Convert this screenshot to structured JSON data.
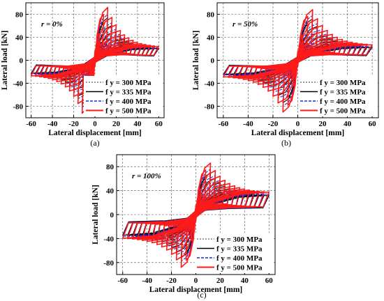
{
  "chart_data": [
    {
      "type": "line",
      "panel_caption": "(a)",
      "annotation": "r = 0%",
      "xlabel": "Lateral displacement [mm]",
      "ylabel": "Lateral load [kN]",
      "xlim": [
        -65,
        65
      ],
      "ylim": [
        -100,
        100
      ],
      "xticks": [
        -60,
        -40,
        -20,
        0,
        20,
        40,
        60
      ],
      "yticks": [
        -80,
        -40,
        0,
        40,
        80
      ],
      "grid": true,
      "legend_position": "bottom-right",
      "series": [
        {
          "name": "f y = 300 MPa",
          "peak_pos": 70,
          "peak_neg": -72,
          "end_pos": 18,
          "end_neg": -20
        },
        {
          "name": "f y = 335 MPa",
          "peak_pos": 74,
          "peak_neg": -76,
          "end_pos": 19,
          "end_neg": -21
        },
        {
          "name": "f y = 400 MPa",
          "peak_pos": 80,
          "peak_neg": -82,
          "end_pos": 20,
          "end_neg": -22
        },
        {
          "name": "f y = 500 MPa",
          "peak_pos": 92,
          "peak_neg": -92,
          "end_pos": 22,
          "end_neg": -25
        }
      ]
    },
    {
      "type": "line",
      "panel_caption": "(b)",
      "annotation": "r = 50%",
      "xlabel": "Lateral displacement [mm]",
      "ylabel": "Lateral load [kN]",
      "xlim": [
        -65,
        65
      ],
      "ylim": [
        -100,
        100
      ],
      "xticks": [
        -60,
        -40,
        -20,
        0,
        20,
        40,
        60
      ],
      "yticks": [
        -80,
        -40,
        0,
        40,
        80
      ],
      "grid": true,
      "legend_position": "bottom-right",
      "series": [
        {
          "name": "f y = 300 MPa",
          "peak_pos": 68,
          "peak_neg": -70,
          "end_pos": 20,
          "end_neg": -22
        },
        {
          "name": "f y = 335 MPa",
          "peak_pos": 72,
          "peak_neg": -74,
          "end_pos": 21,
          "end_neg": -23
        },
        {
          "name": "f y = 400 MPa",
          "peak_pos": 78,
          "peak_neg": -80,
          "end_pos": 22,
          "end_neg": -24
        },
        {
          "name": "f y = 500 MPa",
          "peak_pos": 88,
          "peak_neg": -90,
          "end_pos": 25,
          "end_neg": -27
        }
      ]
    },
    {
      "type": "line",
      "panel_caption": "(c)",
      "annotation": "r = 100%",
      "xlabel": "Lateral displacement [mm]",
      "ylabel": "Lateral load [kN]",
      "xlim": [
        -65,
        65
      ],
      "ylim": [
        -100,
        100
      ],
      "xticks": [
        -60,
        -40,
        -20,
        0,
        20,
        40,
        60
      ],
      "yticks": [
        -80,
        -40,
        0,
        40,
        80
      ],
      "grid": true,
      "legend_position": "bottom-right",
      "series": [
        {
          "name": "f y = 300 MPa",
          "peak_pos": 66,
          "peak_neg": -68,
          "end_pos": 30,
          "end_neg": -32
        },
        {
          "name": "f y = 335 MPa",
          "peak_pos": 70,
          "peak_neg": -72,
          "end_pos": 31,
          "end_neg": -33
        },
        {
          "name": "f y = 400 MPa",
          "peak_pos": 76,
          "peak_neg": -78,
          "end_pos": 33,
          "end_neg": -35
        },
        {
          "name": "f y = 500 MPa",
          "peak_pos": 86,
          "peak_neg": -88,
          "end_pos": 36,
          "end_neg": -38
        }
      ]
    }
  ],
  "series_styles": [
    {
      "color": "#7a7a7a",
      "dash": "2,2",
      "width": 1.0
    },
    {
      "color": "#000000",
      "dash": "",
      "width": 1.1
    },
    {
      "color": "#1a2bd6",
      "dash": "4,2",
      "width": 1.1
    },
    {
      "color": "#ff1a1a",
      "dash": "",
      "width": 1.6
    }
  ]
}
